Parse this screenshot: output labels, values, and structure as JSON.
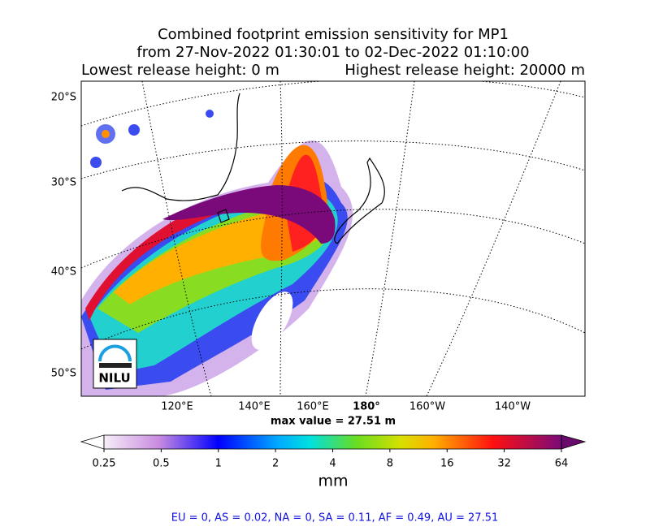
{
  "title": {
    "line1": "Combined footprint emission sensitivity for MP1",
    "line2": "from 27-Nov-2022 01:30:01 to 02-Dec-2022 01:10:00",
    "lowest": "Lowest release height: 0 m",
    "highest": "Highest release height: 20000 m"
  },
  "map": {
    "lat_labels": [
      "20°S",
      "30°S",
      "40°S",
      "50°S"
    ],
    "lon_labels": [
      "120°E",
      "140°E",
      "160°E",
      "180°",
      "160°W",
      "140°W"
    ],
    "logo": "NILU",
    "max_value": "max value = 27.51 m"
  },
  "colorbar": {
    "ticks": [
      0.25,
      0.5,
      1,
      2,
      4,
      8,
      16,
      32,
      64
    ],
    "label": "mm"
  },
  "footer": "EU = 0,  AS = 0.02,  NA = 0,  SA = 0.11,  AF = 0.49,  AU = 27.51"
}
